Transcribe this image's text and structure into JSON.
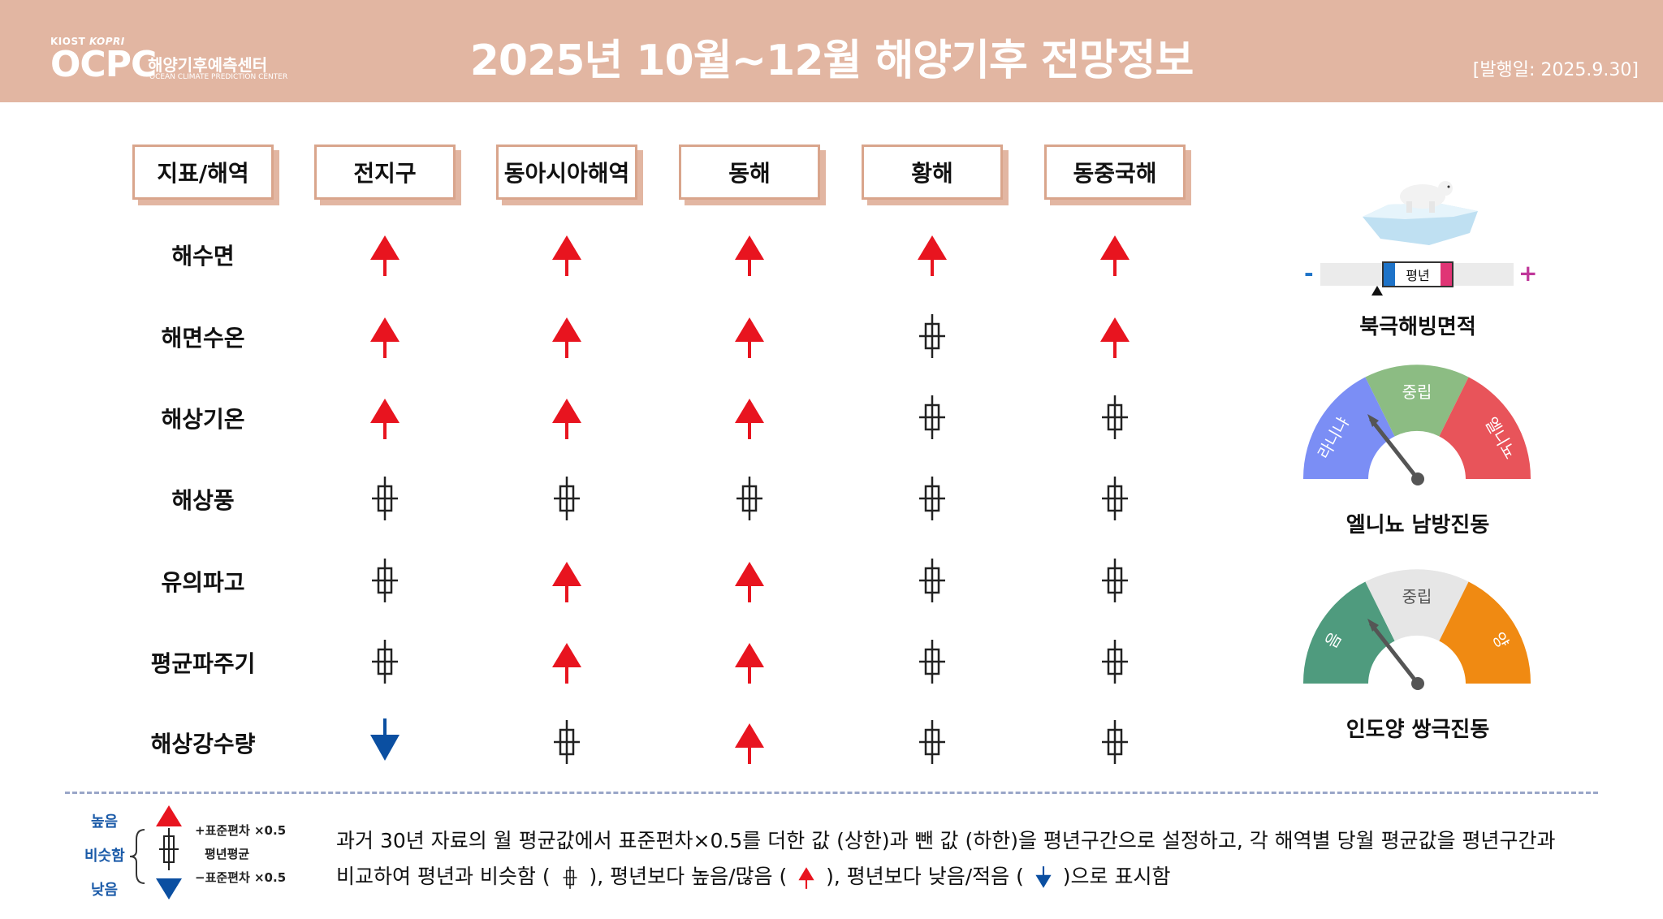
{
  "header": {
    "logo_small": "KIOST",
    "logo_small_mark": "KOPRI",
    "logo_big": "OCPC",
    "logo_kr": "해양기후예측센터",
    "logo_en": "OCEAN CLIMATE PREDICTION CENTER",
    "title": "2025년 10월~12월 해양기후 전망정보",
    "date": "[발행일: 2025.9.30]"
  },
  "colors": {
    "header_bg": "#e2b6a2",
    "up": "#e8141f",
    "down": "#0b4fa1",
    "similar": "#222222"
  },
  "table": {
    "corner": "지표/해역",
    "columns": [
      "전지구",
      "동아시아해역",
      "동해",
      "황해",
      "동중국해"
    ],
    "rows": [
      {
        "label": "해수면",
        "values": [
          "up",
          "up",
          "up",
          "up",
          "up"
        ]
      },
      {
        "label": "해면수온",
        "values": [
          "up",
          "up",
          "up",
          "similar",
          "up"
        ]
      },
      {
        "label": "해상기온",
        "values": [
          "up",
          "up",
          "up",
          "similar",
          "similar"
        ]
      },
      {
        "label": "해상풍",
        "values": [
          "similar",
          "similar",
          "similar",
          "similar",
          "similar"
        ]
      },
      {
        "label": "유의파고",
        "values": [
          "similar",
          "up",
          "up",
          "similar",
          "similar"
        ]
      },
      {
        "label": "평균파주기",
        "values": [
          "similar",
          "up",
          "up",
          "similar",
          "similar"
        ]
      },
      {
        "label": "해상강수량",
        "values": [
          "down",
          "similar",
          "up",
          "similar",
          "similar"
        ]
      }
    ]
  },
  "arctic": {
    "title": "북극해빙면적",
    "minus": "-",
    "plus": "+",
    "normal_label": "평년"
  },
  "enso": {
    "title": "엘니뇨 남방진동",
    "left": "라니냐",
    "mid": "중립",
    "right": "엘니뇨",
    "left_color": "#7b8ef5",
    "mid_color": "#8cbc83",
    "right_color": "#e8545a"
  },
  "iod": {
    "title": "인도양 쌍극진동",
    "left": "음",
    "mid": "중립",
    "right": "양",
    "left_color": "#4f9b7e",
    "mid_color": "#e6e6e6",
    "right_color": "#f08a12"
  },
  "legend": {
    "high": "높음",
    "similar": "비슷함",
    "low": "낮음",
    "plus_sd": "+표준편차 ×0.5",
    "mean": "평년평균",
    "minus_sd": "−표준편차 ×0.5",
    "line1": "과거 30년 자료의 월 평균값에서 표준편차×0.5를   더한 값 (상한)과 뺀 값 (하한)을 평년구간으로   설정하고, 각 해역별  당월 평균값을 평년구간과",
    "line2_a": "비교하여 평년과 비슷함 (",
    "line2_b": "),   평년보다  높음/많음 (",
    "line2_c": "), 평년보다  낮음/적음 (",
    "line2_d": ")으로  표시함"
  }
}
